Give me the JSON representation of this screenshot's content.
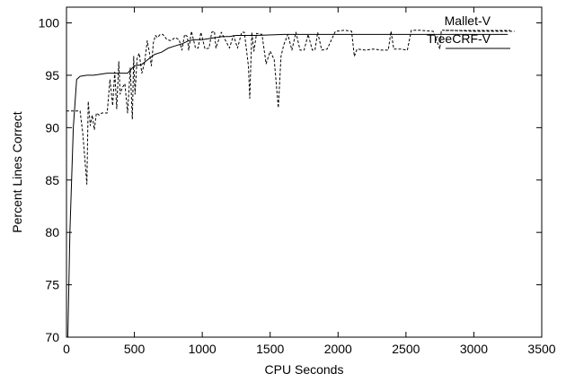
{
  "chart_data": {
    "type": "line",
    "title": "",
    "xlabel": "CPU Seconds",
    "ylabel": "Percent Lines Correct",
    "xlim": [
      0,
      3500
    ],
    "ylim": [
      70,
      101.5
    ],
    "xticks": [
      "0",
      "500",
      "1000",
      "1500",
      "2000",
      "2500",
      "3000",
      "3500"
    ],
    "yticks": [
      "70",
      "75",
      "80",
      "85",
      "90",
      "95",
      "100"
    ],
    "xtick_values": [
      0,
      500,
      1000,
      1500,
      2000,
      2500,
      3000,
      3500
    ],
    "ytick_values": [
      70,
      75,
      80,
      85,
      90,
      95,
      100
    ],
    "grid": false,
    "legend_position": "top-right",
    "series": [
      {
        "name": "Mallet-V",
        "style": "dashed",
        "color": "#000000",
        "x": [
          0,
          100,
          120,
          150,
          160,
          175,
          190,
          205,
          220,
          240,
          260,
          300,
          320,
          340,
          355,
          370,
          385,
          395,
          410,
          430,
          450,
          470,
          485,
          495,
          505,
          520,
          535,
          555,
          575,
          595,
          610,
          625,
          640,
          655,
          670,
          690,
          710,
          740,
          770,
          800,
          830,
          850,
          870,
          890,
          900,
          920,
          950,
          970,
          990,
          1020,
          1050,
          1070,
          1090,
          1100,
          1140,
          1200,
          1230,
          1260,
          1290,
          1310,
          1340,
          1350,
          1365,
          1380,
          1400,
          1440,
          1470,
          1500,
          1530,
          1560,
          1580,
          1600,
          1630,
          1660,
          1690,
          1720,
          1750,
          1780,
          1810,
          1830,
          1850,
          1880,
          1920,
          1980,
          2050,
          2100,
          2120,
          2140,
          2200,
          2260,
          2320,
          2370,
          2390,
          2410,
          2460,
          2510,
          2540,
          2600,
          2700,
          2750,
          2760,
          2800,
          3000,
          3300
        ],
        "y": [
          91.6,
          91.6,
          89.5,
          84.6,
          92.5,
          90.2,
          91.2,
          89.8,
          91.4,
          91.2,
          91.4,
          91.4,
          94.6,
          92.1,
          95.3,
          91.8,
          96.3,
          93.2,
          93.8,
          94.2,
          91.4,
          95.7,
          90.8,
          96.8,
          93.2,
          96.6,
          97.1,
          95.2,
          96.2,
          98.3,
          97.2,
          95.9,
          98.1,
          98.8,
          98.6,
          98.9,
          98.9,
          98.4,
          98.3,
          98.6,
          98.4,
          97.4,
          98.9,
          98.7,
          97.4,
          99.2,
          97.6,
          97.6,
          99.1,
          97.5,
          97.6,
          99.1,
          99.2,
          97.6,
          99.1,
          97.6,
          98.8,
          97.6,
          99.1,
          99.1,
          95.9,
          92.8,
          99.1,
          97.3,
          99.0,
          98.9,
          96.1,
          97.3,
          96.5,
          91.9,
          96.8,
          97.9,
          98.9,
          97.4,
          99.1,
          97.4,
          97.4,
          98.9,
          97.4,
          97.4,
          99.1,
          97.4,
          97.5,
          99.2,
          99.3,
          99.2,
          96.8,
          97.5,
          97.4,
          97.5,
          97.4,
          97.4,
          99.2,
          97.5,
          97.5,
          97.4,
          99.3,
          99.3,
          99.2,
          97.5,
          99.3,
          99.3,
          99.2,
          99.2
        ]
      },
      {
        "name": "TreeCRF-V",
        "style": "solid",
        "color": "#000000",
        "x": [
          0,
          10,
          25,
          50,
          75,
          100,
          150,
          200,
          250,
          300,
          350,
          400,
          450,
          500,
          550,
          600,
          650,
          700,
          750,
          800,
          850,
          900,
          950,
          1000,
          1050,
          1100,
          1150,
          1200,
          1250,
          1300,
          1350,
          1400,
          1600,
          2000,
          2500,
          3000,
          3250
        ],
        "y": [
          70.0,
          70.0,
          80.0,
          90.0,
          94.6,
          94.9,
          95.0,
          95.0,
          95.1,
          95.2,
          95.2,
          95.2,
          95.2,
          95.9,
          96.0,
          96.5,
          97.0,
          97.2,
          97.6,
          97.8,
          98.0,
          98.3,
          98.4,
          98.4,
          98.5,
          98.6,
          98.7,
          98.7,
          98.8,
          98.8,
          98.8,
          98.8,
          98.9,
          98.9,
          98.9,
          98.9,
          98.9
        ]
      }
    ]
  }
}
